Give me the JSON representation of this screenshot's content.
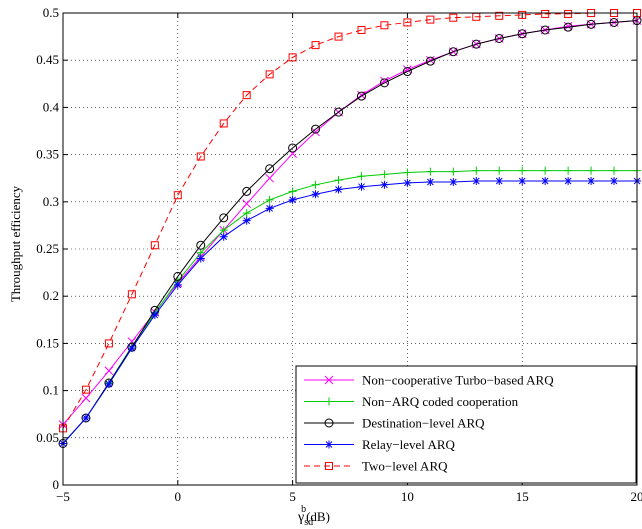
{
  "chart_data": {
    "type": "line",
    "title": "",
    "xlabel": "γ_sd^b(dB)",
    "xlabel_parts": {
      "symbol": "γ",
      "sup": "b",
      "sub": "sd",
      "unit": "(dB)"
    },
    "ylabel": "Throughput efficiency",
    "xlim": [
      -5,
      20
    ],
    "ylim": [
      0,
      0.5
    ],
    "x_ticks": [
      -5,
      0,
      5,
      10,
      15,
      20
    ],
    "x_tick_labels": [
      "−5",
      "0",
      "5",
      "10",
      "15",
      "20"
    ],
    "y_ticks": [
      0,
      0.05,
      0.1,
      0.15,
      0.2,
      0.25,
      0.3,
      0.35,
      0.4,
      0.45,
      0.5
    ],
    "y_tick_labels": [
      "0",
      "0.05",
      "0.1",
      "0.15",
      "0.2",
      "0.25",
      "0.3",
      "0.35",
      "0.4",
      "0.45",
      "0.5"
    ],
    "grid": true,
    "legend_position": "bottom-right",
    "x": [
      -5,
      -4,
      -3,
      -2,
      -1,
      0,
      1,
      2,
      3,
      4,
      5,
      6,
      7,
      8,
      9,
      10,
      11,
      12,
      13,
      14,
      15,
      16,
      17,
      18,
      19,
      20
    ],
    "series": [
      {
        "name": "Non−cooperative Turbo−based ARQ",
        "color": "#ff00ff",
        "marker": "x",
        "dash": "solid",
        "values": [
          0.064,
          0.092,
          0.121,
          0.152,
          0.183,
          0.214,
          0.242,
          0.27,
          0.298,
          0.325,
          0.351,
          0.374,
          0.395,
          0.413,
          0.428,
          0.44,
          0.45,
          0.459,
          0.467,
          0.473,
          0.478,
          0.482,
          0.486,
          0.488,
          0.49,
          0.492
        ]
      },
      {
        "name": "Non−ARQ coded cooperation",
        "color": "#00cc00",
        "marker": "plus",
        "dash": "solid",
        "values": [
          0.044,
          0.071,
          0.108,
          0.147,
          0.182,
          0.216,
          0.246,
          0.27,
          0.288,
          0.302,
          0.311,
          0.318,
          0.323,
          0.327,
          0.329,
          0.331,
          0.332,
          0.332,
          0.333,
          0.333,
          0.333,
          0.333,
          0.333,
          0.333,
          0.333,
          0.333
        ]
      },
      {
        "name": "Destination−level ARQ",
        "color": "#000000",
        "marker": "circle",
        "dash": "solid",
        "values": [
          0.044,
          0.071,
          0.108,
          0.146,
          0.185,
          0.221,
          0.254,
          0.283,
          0.311,
          0.335,
          0.357,
          0.377,
          0.395,
          0.412,
          0.426,
          0.438,
          0.449,
          0.459,
          0.467,
          0.473,
          0.478,
          0.482,
          0.485,
          0.488,
          0.49,
          0.492
        ]
      },
      {
        "name": "Relay−level ARQ",
        "color": "#0000ff",
        "marker": "star",
        "dash": "solid",
        "values": [
          0.044,
          0.071,
          0.107,
          0.145,
          0.18,
          0.212,
          0.24,
          0.263,
          0.28,
          0.293,
          0.302,
          0.308,
          0.313,
          0.316,
          0.318,
          0.32,
          0.321,
          0.321,
          0.322,
          0.322,
          0.322,
          0.322,
          0.322,
          0.322,
          0.322,
          0.322
        ]
      },
      {
        "name": "Two−level ARQ",
        "color": "#ff0000",
        "marker": "square",
        "dash": "dashed",
        "values": [
          0.06,
          0.101,
          0.15,
          0.202,
          0.254,
          0.307,
          0.348,
          0.383,
          0.413,
          0.435,
          0.453,
          0.466,
          0.475,
          0.482,
          0.487,
          0.49,
          0.493,
          0.495,
          0.496,
          0.497,
          0.498,
          0.499,
          0.499,
          0.5,
          0.5,
          0.5
        ]
      }
    ]
  }
}
